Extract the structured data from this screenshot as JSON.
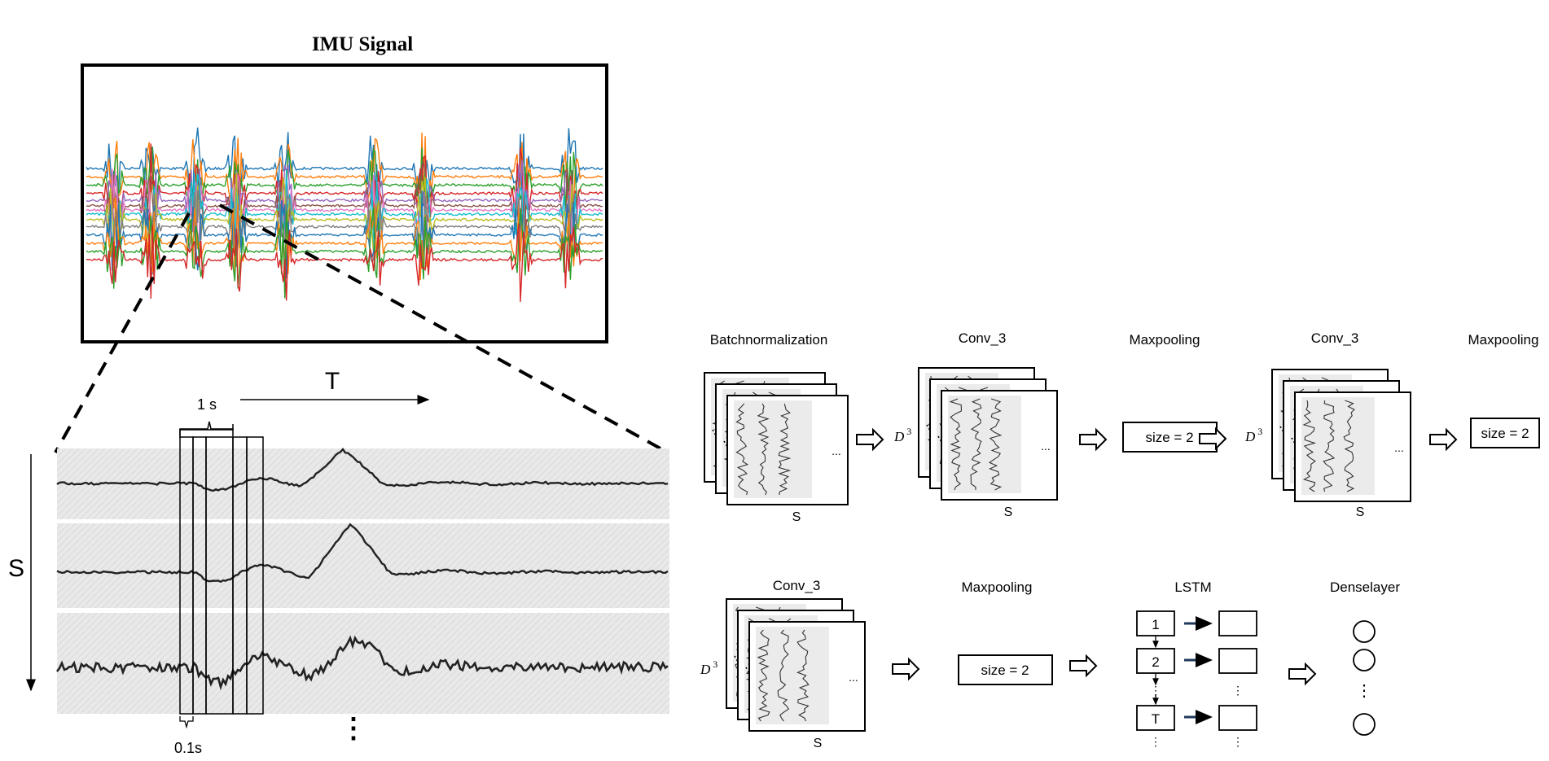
{
  "imu": {
    "title": "IMU Signal"
  },
  "zoom": {
    "axis_t": "T",
    "axis_s": "S",
    "window_label": "1 s",
    "step_label": "0.1s",
    "more": "⋮"
  },
  "pipeline": {
    "row1": {
      "batchnorm": "Batchnormalization",
      "conv_a": "Conv_3",
      "maxpool_a": "Maxpooling",
      "conv_b": "Conv_3",
      "maxpool_b": "Maxpooling"
    },
    "row2": {
      "conv_c": "Conv_3",
      "maxpool_c": "Maxpooling",
      "lstm": "LSTM",
      "dense": "Denselayer"
    },
    "size_label": "size = 2",
    "axis_s": "S",
    "depth_prefix": "D",
    "depth_exp": "3",
    "ellipsis": "...",
    "lstm_cells": [
      "1",
      "2",
      "T"
    ],
    "vdots": "⋮"
  },
  "colors": {
    "stroke": "#000000",
    "arrow_lstm": "#1f3a5a",
    "panel_fill": "#ececec",
    "signal": [
      "#1f77b4",
      "#ff7f0e",
      "#2ca02c",
      "#d62728",
      "#9467bd",
      "#8c564b",
      "#e377c2",
      "#17becf",
      "#bcbd22",
      "#7f7f7f"
    ]
  }
}
